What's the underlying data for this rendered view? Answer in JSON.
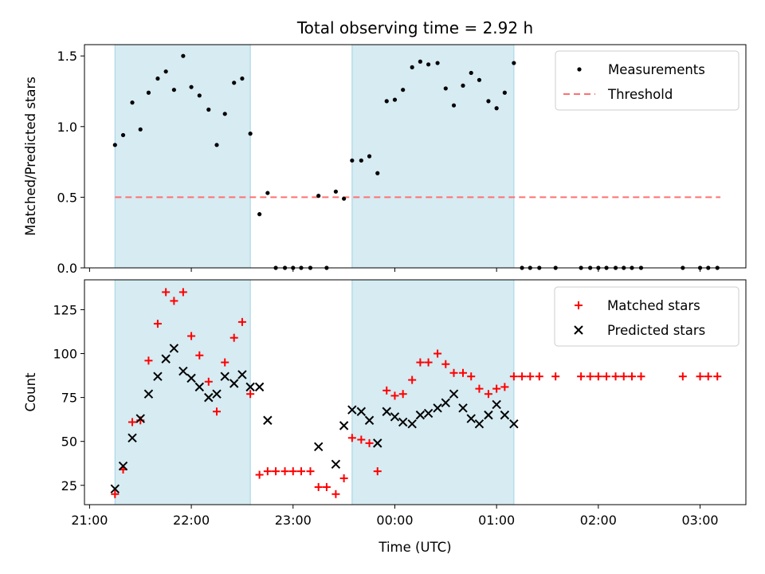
{
  "colors": {
    "observing_band": "#add8e6",
    "measurement": "#000000",
    "threshold": "#ff7070",
    "matched": "#ff0000",
    "predicted": "#000000"
  },
  "chart_data": [
    {
      "type": "scatter",
      "title": "Total observing time = 2.92 h",
      "ylabel": "Matched/Predicted stars",
      "xlabel": "",
      "x_units": "hours since 21:00 UTC (ticks 21:00–03:00)",
      "xlim": [
        -0.05,
        6.45
      ],
      "ylim": [
        0,
        1.58
      ],
      "yticks": [
        "0.0",
        "0.5",
        "1.0",
        "1.5"
      ],
      "ytick_values": [
        0,
        0.5,
        1.0,
        1.5
      ],
      "xticks": [],
      "observing_bands": [
        [
          0.25,
          1.58
        ],
        [
          2.58,
          4.17
        ]
      ],
      "legend": {
        "position": "top-right",
        "entries": [
          "Measurements",
          "Threshold"
        ]
      },
      "threshold": {
        "name": "Threshold",
        "y": 0.5,
        "x_range": [
          0.25,
          6.2
        ]
      },
      "series": [
        {
          "name": "Measurements",
          "x": [
            0.25,
            0.33,
            0.42,
            0.5,
            0.58,
            0.67,
            0.75,
            0.83,
            0.92,
            1.0,
            1.08,
            1.17,
            1.25,
            1.33,
            1.42,
            1.5,
            1.58,
            1.67,
            1.75,
            1.83,
            1.92,
            2.0,
            2.08,
            2.17,
            2.25,
            2.33,
            2.42,
            2.5,
            2.58,
            2.67,
            2.75,
            2.83,
            2.92,
            3.0,
            3.08,
            3.17,
            3.25,
            3.33,
            3.42,
            3.5,
            3.58,
            3.67,
            3.75,
            3.83,
            3.92,
            4.0,
            4.08,
            4.17,
            4.25,
            4.33,
            4.42,
            4.58,
            4.83,
            4.92,
            5.0,
            5.08,
            5.17,
            5.25,
            5.33,
            5.42,
            5.83,
            6.0,
            6.08,
            6.17
          ],
          "y": [
            0.87,
            0.94,
            1.17,
            0.98,
            1.24,
            1.34,
            1.39,
            1.26,
            1.5,
            1.28,
            1.22,
            1.12,
            0.87,
            1.09,
            1.31,
            1.34,
            0.95,
            0.38,
            0.53,
            0.0,
            0.0,
            0.0,
            0.0,
            0.0,
            0.51,
            0.0,
            0.54,
            0.49,
            0.76,
            0.76,
            0.79,
            0.67,
            1.18,
            1.19,
            1.26,
            1.42,
            1.46,
            1.44,
            1.45,
            1.27,
            1.15,
            1.29,
            1.38,
            1.33,
            1.18,
            1.13,
            1.24,
            1.45,
            0.0,
            0.0,
            0.0,
            0.0,
            0.0,
            0.0,
            0.0,
            0.0,
            0.0,
            0.0,
            0.0,
            0.0,
            0.0,
            0.0,
            0.0,
            0.0
          ]
        }
      ]
    },
    {
      "type": "scatter",
      "title": "",
      "ylabel": "Count",
      "xlabel": "Time (UTC)",
      "xlim": [
        -0.05,
        6.45
      ],
      "ylim": [
        14,
        142
      ],
      "yticks": [
        "25",
        "50",
        "75",
        "100",
        "125"
      ],
      "ytick_values": [
        25,
        50,
        75,
        100,
        125
      ],
      "xticks": [
        "21:00",
        "22:00",
        "23:00",
        "00:00",
        "01:00",
        "02:00",
        "03:00"
      ],
      "xtick_values": [
        0,
        1,
        2,
        3,
        4,
        5,
        6
      ],
      "observing_bands": [
        [
          0.25,
          1.58
        ],
        [
          2.58,
          4.17
        ]
      ],
      "legend": {
        "position": "top-right",
        "entries": [
          "Matched stars",
          "Predicted stars"
        ]
      },
      "series": [
        {
          "name": "Matched stars",
          "marker": "+",
          "x": [
            0.25,
            0.33,
            0.42,
            0.5,
            0.58,
            0.67,
            0.75,
            0.83,
            0.92,
            1.0,
            1.08,
            1.17,
            1.25,
            1.33,
            1.42,
            1.5,
            1.58,
            1.67,
            1.75,
            1.83,
            1.92,
            2.0,
            2.08,
            2.17,
            2.25,
            2.33,
            2.42,
            2.5,
            2.58,
            2.67,
            2.75,
            2.83,
            2.92,
            3.0,
            3.08,
            3.17,
            3.25,
            3.33,
            3.42,
            3.5,
            3.58,
            3.67,
            3.75,
            3.83,
            3.92,
            4.0,
            4.08,
            4.17,
            4.25,
            4.33,
            4.42,
            4.58,
            4.83,
            4.92,
            5.0,
            5.08,
            5.17,
            5.25,
            5.33,
            5.42,
            5.83,
            6.0,
            6.08,
            6.17
          ],
          "y": [
            20,
            34,
            61,
            62,
            96,
            117,
            135,
            130,
            135,
            110,
            99,
            84,
            67,
            95,
            109,
            118,
            77,
            31,
            33,
            33,
            33,
            33,
            33,
            33,
            24,
            24,
            20,
            29,
            52,
            51,
            49,
            33,
            79,
            76,
            77,
            85,
            95,
            95,
            100,
            94,
            89,
            89,
            87,
            80,
            77,
            80,
            81,
            87,
            87,
            87,
            87,
            87,
            87,
            87,
            87,
            87,
            87,
            87,
            87,
            87,
            87,
            87,
            87,
            87
          ]
        },
        {
          "name": "Predicted stars",
          "marker": "x",
          "x": [
            0.25,
            0.33,
            0.42,
            0.5,
            0.58,
            0.67,
            0.75,
            0.83,
            0.92,
            1.0,
            1.08,
            1.17,
            1.25,
            1.33,
            1.42,
            1.5,
            1.58,
            1.67,
            1.75,
            2.25,
            2.42,
            2.5,
            2.58,
            2.67,
            2.75,
            2.83,
            2.92,
            3.0,
            3.08,
            3.17,
            3.25,
            3.33,
            3.42,
            3.5,
            3.58,
            3.67,
            3.75,
            3.83,
            3.92,
            4.0,
            4.08,
            4.17
          ],
          "y": [
            23,
            36,
            52,
            63,
            77,
            87,
            97,
            103,
            90,
            86,
            81,
            75,
            77,
            87,
            83,
            88,
            81,
            81,
            62,
            47,
            37,
            59,
            68,
            67,
            62,
            49,
            67,
            64,
            61,
            60,
            65,
            66,
            69,
            72,
            77,
            69,
            63,
            60,
            65,
            71,
            65,
            60
          ]
        }
      ]
    }
  ]
}
